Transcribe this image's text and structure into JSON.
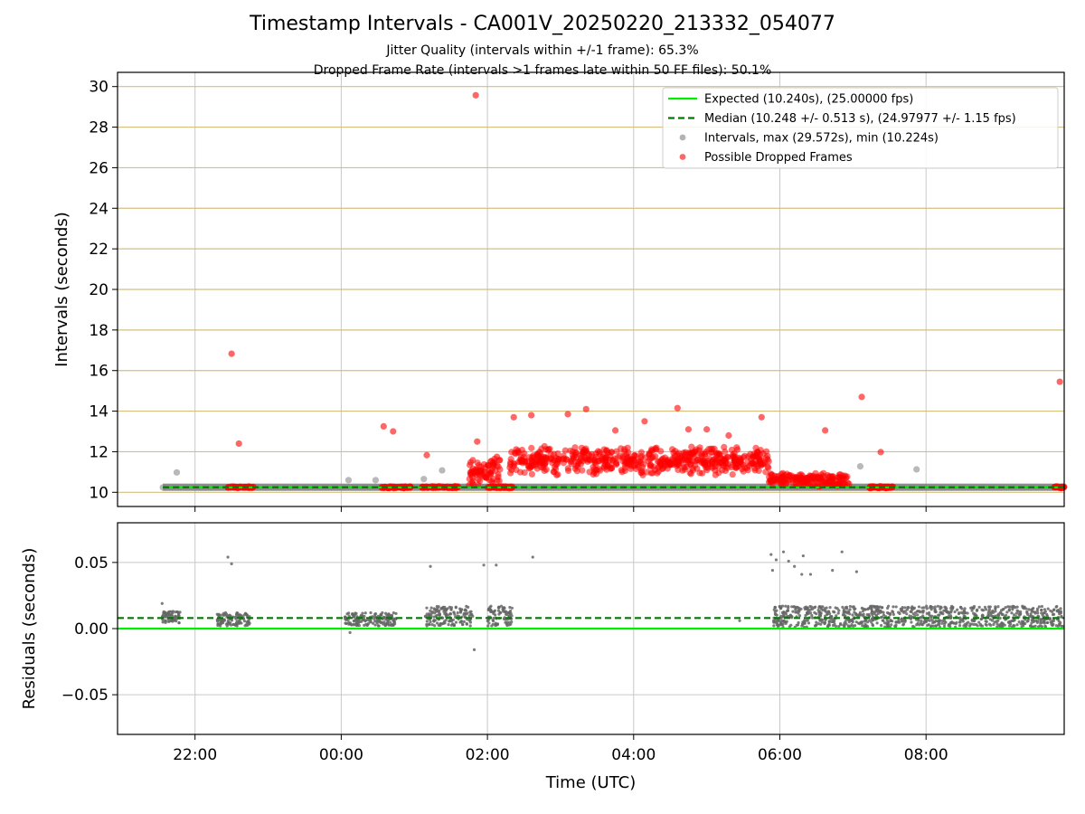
{
  "title": "Timestamp Intervals - CA001V_20250220_213332_054077",
  "subtitle_1": "Jitter Quality (intervals within +/-1 frame): 65.3%",
  "subtitle_2": "Dropped Frame Rate (intervals >1 frames late within 50 FF files): 50.1%",
  "colors": {
    "expected": "#00ee00",
    "median": "#007a00",
    "intervals": "#808080",
    "dropped": "#ff0000",
    "hgrid_top": "#d4bf7f",
    "grid": "#c8c8c8"
  },
  "chart_data": [
    {
      "type": "scatter",
      "panel": "top",
      "ylabel": "Intervals (seconds)",
      "ylim": [
        9.3,
        30.7
      ],
      "xlim_hours": [
        -3.06,
        9.89
      ],
      "yticks": [
        "10",
        "12",
        "14",
        "16",
        "18",
        "20",
        "22",
        "24",
        "26",
        "28",
        "30"
      ],
      "grid": true,
      "legend_position": "top-right",
      "legend": [
        {
          "label": "Expected (10.240s), (25.00000 fps)",
          "kind": "solid-line"
        },
        {
          "label": "Median (10.248 +/- 0.513 s), (24.97977 +/- 1.15 fps)",
          "kind": "dashed-line"
        },
        {
          "label": "Intervals, max (29.572s), min (10.224s)",
          "kind": "gray-dot"
        },
        {
          "label": "Possible Dropped Frames",
          "kind": "red-dot"
        }
      ],
      "expected": 10.24,
      "median": 10.248,
      "gray_points": [
        {
          "t": -2.44,
          "v": 10.24
        },
        {
          "t": -2.25,
          "v": 10.98
        },
        {
          "t": 0.1,
          "v": 10.6
        },
        {
          "t": 0.47,
          "v": 10.6
        },
        {
          "t": 1.13,
          "v": 10.65
        },
        {
          "t": 1.38,
          "v": 11.08
        },
        {
          "t": 7.1,
          "v": 11.28
        },
        {
          "t": 7.87,
          "v": 11.13
        },
        {
          "t": 9.85,
          "v": 10.27
        }
      ],
      "gray_band": {
        "from": -2.44,
        "to": 9.89,
        "value": 10.25
      },
      "red_points": [
        {
          "t": -1.5,
          "v": 16.83
        },
        {
          "t": -1.4,
          "v": 12.4
        },
        {
          "t": 0.58,
          "v": 13.25
        },
        {
          "t": 0.71,
          "v": 13.0
        },
        {
          "t": 1.17,
          "v": 11.83
        },
        {
          "t": 1.84,
          "v": 29.57
        },
        {
          "t": 1.86,
          "v": 12.5
        },
        {
          "t": 2.13,
          "v": 11.75
        },
        {
          "t": 2.36,
          "v": 13.7
        },
        {
          "t": 2.6,
          "v": 13.8
        },
        {
          "t": 3.1,
          "v": 13.85
        },
        {
          "t": 3.35,
          "v": 14.1
        },
        {
          "t": 3.75,
          "v": 13.05
        },
        {
          "t": 4.15,
          "v": 13.5
        },
        {
          "t": 4.6,
          "v": 14.15
        },
        {
          "t": 4.75,
          "v": 13.1
        },
        {
          "t": 5.0,
          "v": 13.1
        },
        {
          "t": 5.3,
          "v": 12.8
        },
        {
          "t": 5.75,
          "v": 13.7
        },
        {
          "t": 6.62,
          "v": 13.05
        },
        {
          "t": 7.12,
          "v": 14.7
        },
        {
          "t": 7.38,
          "v": 11.98
        },
        {
          "t": 9.83,
          "v": 15.45
        }
      ],
      "red_clusters": [
        {
          "from": -1.55,
          "to": -1.2,
          "min": 10.2,
          "max": 10.3
        },
        {
          "from": 0.55,
          "to": 0.95,
          "min": 10.2,
          "max": 10.3
        },
        {
          "from": 1.1,
          "to": 1.6,
          "min": 10.2,
          "max": 10.3
        },
        {
          "from": 1.75,
          "to": 2.2,
          "min": 10.3,
          "max": 11.8
        },
        {
          "from": 2.0,
          "to": 2.35,
          "min": 10.2,
          "max": 10.3
        },
        {
          "from": 2.3,
          "to": 5.85,
          "min": 10.8,
          "max": 12.3
        },
        {
          "from": 5.85,
          "to": 6.95,
          "min": 10.25,
          "max": 11.0
        },
        {
          "from": 7.2,
          "to": 7.55,
          "min": 10.2,
          "max": 10.3
        },
        {
          "from": 9.75,
          "to": 9.89,
          "min": 10.2,
          "max": 10.3
        }
      ]
    },
    {
      "type": "scatter",
      "panel": "bottom",
      "xlabel": "Time (UTC)",
      "ylabel": "Residuals (seconds)",
      "ylim": [
        -0.08,
        0.08
      ],
      "xlim_hours": [
        -3.06,
        9.89
      ],
      "yticks": [
        "0.05",
        "0.00",
        "−0.05"
      ],
      "ytick_values": [
        0.05,
        0.0,
        -0.05
      ],
      "xticks": [
        "22:00",
        "00:00",
        "02:00",
        "04:00",
        "06:00",
        "08:00"
      ],
      "xtick_hours": [
        -2,
        0,
        2,
        4,
        6,
        8
      ],
      "grid": true,
      "expected_residual": 0.0,
      "median_residual": 0.008,
      "points": [
        {
          "t": -2.45,
          "v": 0.019
        },
        {
          "t": -2.3,
          "v": 0.013
        },
        {
          "t": -1.55,
          "v": 0.054
        },
        {
          "t": -1.5,
          "v": 0.049
        },
        {
          "t": 0.12,
          "v": -0.003
        },
        {
          "t": 1.22,
          "v": 0.047
        },
        {
          "t": 1.82,
          "v": -0.016
        },
        {
          "t": 1.95,
          "v": 0.048
        },
        {
          "t": 2.12,
          "v": 0.048
        },
        {
          "t": 2.62,
          "v": 0.054
        },
        {
          "t": 5.45,
          "v": 0.006
        },
        {
          "t": 5.88,
          "v": 0.056
        },
        {
          "t": 5.95,
          "v": 0.052
        },
        {
          "t": 6.05,
          "v": 0.058
        },
        {
          "t": 6.12,
          "v": 0.051
        },
        {
          "t": 6.2,
          "v": 0.047
        },
        {
          "t": 6.32,
          "v": 0.055
        },
        {
          "t": 6.42,
          "v": 0.041
        },
        {
          "t": 6.72,
          "v": 0.044
        },
        {
          "t": 6.85,
          "v": 0.058
        },
        {
          "t": 7.05,
          "v": 0.043
        },
        {
          "t": 5.9,
          "v": 0.044
        },
        {
          "t": 6.3,
          "v": 0.041
        }
      ],
      "clusters": [
        {
          "from": -2.45,
          "to": -2.2,
          "min": 0.004,
          "max": 0.013
        },
        {
          "from": -1.7,
          "to": -1.25,
          "min": 0.002,
          "max": 0.012
        },
        {
          "from": 0.05,
          "to": 0.75,
          "min": 0.002,
          "max": 0.012
        },
        {
          "from": 1.15,
          "to": 1.8,
          "min": 0.002,
          "max": 0.017
        },
        {
          "from": 2.0,
          "to": 2.35,
          "min": 0.002,
          "max": 0.017
        },
        {
          "from": 5.9,
          "to": 9.89,
          "min": 0.001,
          "max": 0.017
        }
      ]
    }
  ]
}
